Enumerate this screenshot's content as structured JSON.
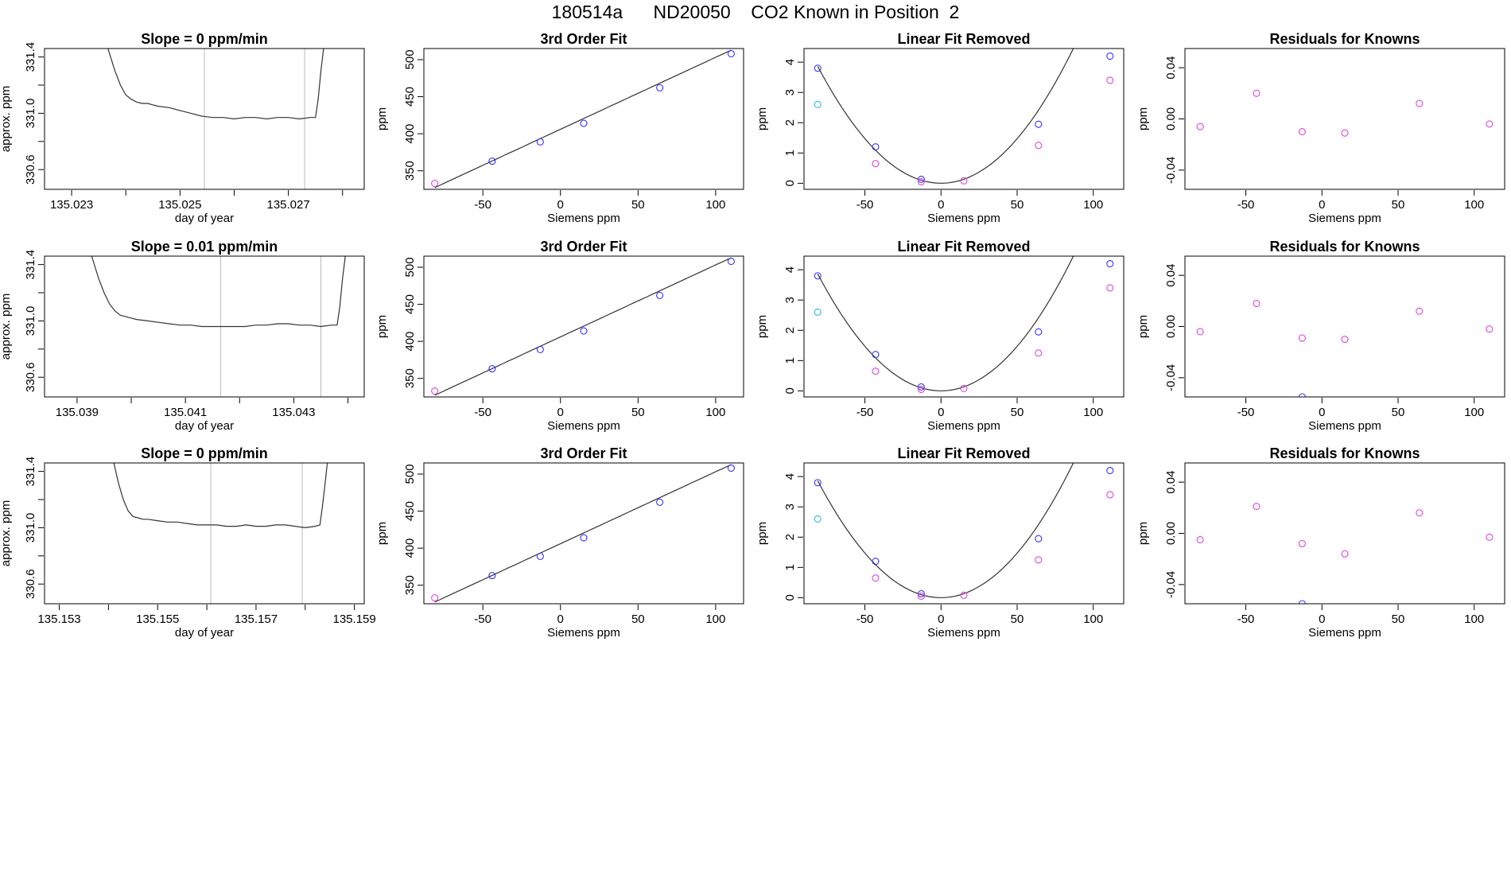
{
  "page": {
    "title": "180514a      ND20050    CO2 Known in Position  2"
  },
  "colors": {
    "line": "#333333",
    "blue": "#3333ff",
    "magenta": "#dd44dd",
    "cyan": "#22bbdd",
    "gray": "#bbbbbb",
    "axis": "#000000"
  },
  "chart_data": [
    {
      "type": "line",
      "row": 0,
      "col": 0,
      "title": "Slope =  0  ppm/min",
      "xlabel": "day of year",
      "ylabel": "approx. ppm",
      "xlim": [
        135.0225,
        135.0284
      ],
      "ylim": [
        330.46,
        331.46
      ],
      "xticks": [
        135.023,
        135.024,
        135.025,
        135.026,
        135.027,
        135.028
      ],
      "xtick_labels": [
        "135.023",
        "",
        "135.025",
        "",
        "135.027",
        ""
      ],
      "yticks": [
        330.6,
        330.8,
        331.0,
        331.2,
        331.4
      ],
      "ytick_labels": [
        "330.6",
        "",
        "331.0",
        "",
        "331.4"
      ],
      "vlines": [
        135.02545,
        135.0273
      ],
      "trace": {
        "x": [
          135.02367,
          135.0238,
          135.0239,
          135.024,
          135.0241,
          135.0242,
          135.0243,
          135.0244,
          135.0245,
          135.0246,
          135.0248,
          135.025,
          135.0252,
          135.0254,
          135.0256,
          135.0258,
          135.026,
          135.0262,
          135.0264,
          135.0266,
          135.0268,
          135.027,
          135.0272,
          135.0274,
          135.0275,
          135.02755,
          135.0276,
          135.02765
        ],
        "y": [
          331.46,
          331.3,
          331.2,
          331.13,
          331.1,
          331.08,
          331.07,
          331.07,
          331.06,
          331.05,
          331.04,
          331.02,
          331.0,
          330.98,
          330.97,
          330.97,
          330.96,
          330.97,
          330.97,
          330.96,
          330.97,
          330.97,
          330.96,
          330.97,
          330.97,
          331.1,
          331.3,
          331.46
        ]
      }
    },
    {
      "type": "scatter",
      "row": 0,
      "col": 1,
      "title": "3rd Order Fit",
      "xlabel": "Siemens ppm",
      "ylabel": "ppm",
      "xlim": [
        -88,
        118
      ],
      "ylim": [
        325,
        515
      ],
      "xticks": [
        -50,
        0,
        50,
        100
      ],
      "xtick_labels": [
        "-50",
        "0",
        "50",
        "100"
      ],
      "yticks": [
        350,
        400,
        450,
        500
      ],
      "ytick_labels": [
        "350",
        "400",
        "450",
        "500"
      ],
      "fit": {
        "kind": "linear",
        "slope": 0.9715,
        "intercept": 406,
        "x_range": [
          -81,
          110
        ]
      },
      "points": [
        {
          "x": -81,
          "y": 333,
          "color": "magenta"
        },
        {
          "x": -44,
          "y": 363,
          "color": "blue"
        },
        {
          "x": -13,
          "y": 389,
          "color": "blue"
        },
        {
          "x": 15,
          "y": 414,
          "color": "blue"
        },
        {
          "x": 64,
          "y": 462,
          "color": "blue"
        },
        {
          "x": 110,
          "y": 508,
          "color": "blue"
        }
      ]
    },
    {
      "type": "scatter",
      "row": 0,
      "col": 2,
      "title": "Linear Fit Removed",
      "xlabel": "Siemens ppm",
      "ylabel": "ppm",
      "xlim": [
        -90,
        120
      ],
      "ylim": [
        -0.2,
        4.45
      ],
      "xticks": [
        -50,
        0,
        50,
        100
      ],
      "xtick_labels": [
        "-50",
        "0",
        "50",
        "100"
      ],
      "yticks": [
        0,
        1,
        2,
        3,
        4
      ],
      "ytick_labels": [
        "0",
        "1",
        "2",
        "3",
        "4"
      ],
      "fit": {
        "kind": "quadratic",
        "a": 0.000589,
        "b": 0.0,
        "c": 0.0,
        "x_range": [
          -81,
          110
        ]
      },
      "points": [
        {
          "x": -81,
          "y": 3.8,
          "color": "blue"
        },
        {
          "x": -81,
          "y": 2.6,
          "color": "cyan"
        },
        {
          "x": -43,
          "y": 1.2,
          "color": "blue"
        },
        {
          "x": -43,
          "y": 0.65,
          "color": "magenta"
        },
        {
          "x": -13,
          "y": 0.13,
          "color": "blue"
        },
        {
          "x": -13,
          "y": 0.05,
          "color": "magenta"
        },
        {
          "x": 15,
          "y": 0.08,
          "color": "magenta"
        },
        {
          "x": 64,
          "y": 1.95,
          "color": "blue"
        },
        {
          "x": 64,
          "y": 1.25,
          "color": "magenta"
        },
        {
          "x": 111,
          "y": 4.2,
          "color": "blue"
        },
        {
          "x": 111,
          "y": 3.4,
          "color": "magenta"
        }
      ]
    },
    {
      "type": "scatter",
      "row": 0,
      "col": 3,
      "title": "Residuals for Knowns",
      "xlabel": "Siemens ppm",
      "ylabel": "ppm",
      "xlim": [
        -90,
        120
      ],
      "ylim": [
        -0.055,
        0.055
      ],
      "xticks": [
        -50,
        0,
        50,
        100
      ],
      "xtick_labels": [
        "-50",
        "0",
        "50",
        "100"
      ],
      "yticks": [
        -0.04,
        0.0,
        0.04
      ],
      "ytick_labels": [
        "-0.04",
        "0.00",
        "0.04"
      ],
      "points": [
        {
          "x": -80,
          "y": -0.006,
          "color": "magenta"
        },
        {
          "x": -43,
          "y": 0.02,
          "color": "magenta"
        },
        {
          "x": -13,
          "y": -0.01,
          "color": "magenta"
        },
        {
          "x": 15,
          "y": -0.011,
          "color": "magenta"
        },
        {
          "x": 64,
          "y": 0.012,
          "color": "magenta"
        },
        {
          "x": 110,
          "y": -0.004,
          "color": "magenta"
        }
      ]
    },
    {
      "type": "line",
      "row": 1,
      "col": 0,
      "title": "Slope =  0.01  ppm/min",
      "xlabel": "day of year",
      "ylabel": "approx. ppm",
      "xlim": [
        135.0384,
        135.0443
      ],
      "ylim": [
        330.46,
        331.46
      ],
      "xticks": [
        135.039,
        135.04,
        135.041,
        135.042,
        135.043,
        135.044
      ],
      "xtick_labels": [
        "135.039",
        "",
        "135.041",
        "",
        "135.043",
        ""
      ],
      "yticks": [
        330.6,
        330.8,
        331.0,
        331.2,
        331.4
      ],
      "ytick_labels": [
        "330.6",
        "",
        "331.0",
        "",
        "331.4"
      ],
      "vlines": [
        135.04165,
        135.0435
      ],
      "trace": {
        "x": [
          135.03927,
          135.0394,
          135.0395,
          135.0396,
          135.0397,
          135.0398,
          135.0399,
          135.04,
          135.0401,
          135.0403,
          135.0405,
          135.0407,
          135.0409,
          135.0411,
          135.0413,
          135.0415,
          135.0417,
          135.0419,
          135.0421,
          135.0423,
          135.0425,
          135.0427,
          135.0429,
          135.0431,
          135.0433,
          135.0435,
          135.0437,
          135.0438,
          135.04385,
          135.0439,
          135.04395
        ],
        "y": [
          331.46,
          331.3,
          331.2,
          331.12,
          331.07,
          331.04,
          331.03,
          331.02,
          331.01,
          331.0,
          330.99,
          330.98,
          330.97,
          330.97,
          330.96,
          330.96,
          330.96,
          330.96,
          330.96,
          330.97,
          330.97,
          330.98,
          330.98,
          330.97,
          330.97,
          330.96,
          330.97,
          330.97,
          331.1,
          331.3,
          331.46
        ]
      }
    },
    {
      "type": "scatter",
      "row": 1,
      "col": 1,
      "title": "3rd Order Fit",
      "xlabel": "Siemens ppm",
      "ylabel": "ppm",
      "xlim": [
        -88,
        118
      ],
      "ylim": [
        325,
        515
      ],
      "xticks": [
        -50,
        0,
        50,
        100
      ],
      "xtick_labels": [
        "-50",
        "0",
        "50",
        "100"
      ],
      "yticks": [
        350,
        400,
        450,
        500
      ],
      "ytick_labels": [
        "350",
        "400",
        "450",
        "500"
      ],
      "fit": {
        "kind": "linear",
        "slope": 0.9715,
        "intercept": 406,
        "x_range": [
          -81,
          110
        ]
      },
      "points": [
        {
          "x": -81,
          "y": 333,
          "color": "magenta"
        },
        {
          "x": -44,
          "y": 363,
          "color": "blue"
        },
        {
          "x": -13,
          "y": 389,
          "color": "blue"
        },
        {
          "x": 15,
          "y": 414,
          "color": "blue"
        },
        {
          "x": 64,
          "y": 462,
          "color": "blue"
        },
        {
          "x": 110,
          "y": 508,
          "color": "blue"
        }
      ]
    },
    {
      "type": "scatter",
      "row": 1,
      "col": 2,
      "title": "Linear Fit Removed",
      "xlabel": "Siemens ppm",
      "ylabel": "ppm",
      "xlim": [
        -90,
        120
      ],
      "ylim": [
        -0.2,
        4.45
      ],
      "xticks": [
        -50,
        0,
        50,
        100
      ],
      "xtick_labels": [
        "-50",
        "0",
        "50",
        "100"
      ],
      "yticks": [
        0,
        1,
        2,
        3,
        4
      ],
      "ytick_labels": [
        "0",
        "1",
        "2",
        "3",
        "4"
      ],
      "fit": {
        "kind": "quadratic",
        "a": 0.000589,
        "b": 0.0,
        "c": 0.0,
        "x_range": [
          -81,
          110
        ]
      },
      "points": [
        {
          "x": -81,
          "y": 3.8,
          "color": "blue"
        },
        {
          "x": -81,
          "y": 2.6,
          "color": "cyan"
        },
        {
          "x": -43,
          "y": 1.2,
          "color": "blue"
        },
        {
          "x": -43,
          "y": 0.65,
          "color": "magenta"
        },
        {
          "x": -13,
          "y": 0.13,
          "color": "blue"
        },
        {
          "x": -13,
          "y": 0.05,
          "color": "magenta"
        },
        {
          "x": 15,
          "y": 0.08,
          "color": "magenta"
        },
        {
          "x": 64,
          "y": 1.95,
          "color": "blue"
        },
        {
          "x": 64,
          "y": 1.25,
          "color": "magenta"
        },
        {
          "x": 111,
          "y": 4.2,
          "color": "blue"
        },
        {
          "x": 111,
          "y": 3.4,
          "color": "magenta"
        }
      ]
    },
    {
      "type": "scatter",
      "row": 1,
      "col": 3,
      "title": "Residuals for Knowns",
      "xlabel": "Siemens ppm",
      "ylabel": "ppm",
      "xlim": [
        -90,
        120
      ],
      "ylim": [
        -0.055,
        0.055
      ],
      "xticks": [
        -50,
        0,
        50,
        100
      ],
      "xtick_labels": [
        "-50",
        "0",
        "50",
        "100"
      ],
      "yticks": [
        -0.04,
        0.0,
        0.04
      ],
      "ytick_labels": [
        "-0.04",
        "0.00",
        "0.04"
      ],
      "points": [
        {
          "x": -80,
          "y": -0.004,
          "color": "magenta"
        },
        {
          "x": -43,
          "y": 0.018,
          "color": "magenta"
        },
        {
          "x": -13,
          "y": -0.009,
          "color": "magenta"
        },
        {
          "x": 15,
          "y": -0.01,
          "color": "magenta"
        },
        {
          "x": 64,
          "y": 0.012,
          "color": "magenta"
        },
        {
          "x": 110,
          "y": -0.002,
          "color": "magenta"
        },
        {
          "x": -13,
          "y": -0.055,
          "color": "blue"
        }
      ]
    },
    {
      "type": "line",
      "row": 2,
      "col": 0,
      "title": "Slope =  0  ppm/min",
      "xlabel": "day of year",
      "ylabel": "approx. ppm",
      "xlim": [
        135.1527,
        135.1592
      ],
      "ylim": [
        330.46,
        331.46
      ],
      "xticks": [
        135.153,
        135.154,
        135.155,
        135.156,
        135.157,
        135.158,
        135.159
      ],
      "xtick_labels": [
        "135.153",
        "",
        "135.155",
        "",
        "135.157",
        "",
        "135.159"
      ],
      "yticks": [
        330.6,
        330.8,
        331.0,
        331.2,
        331.4
      ],
      "ytick_labels": [
        "330.6",
        "",
        "331.0",
        "",
        "331.4"
      ],
      "vlines": [
        135.15608,
        135.15794
      ],
      "trace": {
        "x": [
          135.15411,
          135.1542,
          135.1543,
          135.1544,
          135.1545,
          135.1546,
          135.1547,
          135.1548,
          135.155,
          135.1552,
          135.1554,
          135.1556,
          135.1558,
          135.156,
          135.1562,
          135.1564,
          135.1566,
          135.1568,
          135.157,
          135.1572,
          135.1574,
          135.1576,
          135.1578,
          135.158,
          135.1582,
          135.1583,
          135.15835,
          135.1584,
          135.15845
        ],
        "y": [
          331.46,
          331.32,
          331.2,
          331.12,
          331.08,
          331.07,
          331.06,
          331.06,
          331.05,
          331.04,
          331.04,
          331.03,
          331.02,
          331.02,
          331.02,
          331.01,
          331.01,
          331.02,
          331.01,
          331.01,
          331.02,
          331.02,
          331.01,
          331.0,
          331.01,
          331.02,
          331.15,
          331.3,
          331.46
        ]
      }
    },
    {
      "type": "scatter",
      "row": 2,
      "col": 1,
      "title": "3rd Order Fit",
      "xlabel": "Siemens ppm",
      "ylabel": "ppm",
      "xlim": [
        -88,
        118
      ],
      "ylim": [
        325,
        515
      ],
      "xticks": [
        -50,
        0,
        50,
        100
      ],
      "xtick_labels": [
        "-50",
        "0",
        "50",
        "100"
      ],
      "yticks": [
        350,
        400,
        450,
        500
      ],
      "ytick_labels": [
        "350",
        "400",
        "450",
        "500"
      ],
      "fit": {
        "kind": "linear",
        "slope": 0.9715,
        "intercept": 406,
        "x_range": [
          -81,
          110
        ]
      },
      "points": [
        {
          "x": -81,
          "y": 333,
          "color": "magenta"
        },
        {
          "x": -44,
          "y": 363,
          "color": "blue"
        },
        {
          "x": -13,
          "y": 389,
          "color": "blue"
        },
        {
          "x": 15,
          "y": 414,
          "color": "blue"
        },
        {
          "x": 64,
          "y": 462,
          "color": "blue"
        },
        {
          "x": 110,
          "y": 508,
          "color": "blue"
        }
      ]
    },
    {
      "type": "scatter",
      "row": 2,
      "col": 2,
      "title": "Linear Fit Removed",
      "xlabel": "Siemens ppm",
      "ylabel": "ppm",
      "xlim": [
        -90,
        120
      ],
      "ylim": [
        -0.2,
        4.45
      ],
      "xticks": [
        -50,
        0,
        50,
        100
      ],
      "xtick_labels": [
        "-50",
        "0",
        "50",
        "100"
      ],
      "yticks": [
        0,
        1,
        2,
        3,
        4
      ],
      "ytick_labels": [
        "0",
        "1",
        "2",
        "3",
        "4"
      ],
      "fit": {
        "kind": "quadratic",
        "a": 0.000589,
        "b": 0.0,
        "c": 0.0,
        "x_range": [
          -81,
          110
        ]
      },
      "points": [
        {
          "x": -81,
          "y": 3.8,
          "color": "blue"
        },
        {
          "x": -81,
          "y": 2.6,
          "color": "cyan"
        },
        {
          "x": -43,
          "y": 1.2,
          "color": "blue"
        },
        {
          "x": -43,
          "y": 0.65,
          "color": "magenta"
        },
        {
          "x": -13,
          "y": 0.13,
          "color": "blue"
        },
        {
          "x": -13,
          "y": 0.05,
          "color": "magenta"
        },
        {
          "x": 15,
          "y": 0.08,
          "color": "magenta"
        },
        {
          "x": 64,
          "y": 1.95,
          "color": "blue"
        },
        {
          "x": 64,
          "y": 1.25,
          "color": "magenta"
        },
        {
          "x": 111,
          "y": 4.2,
          "color": "blue"
        },
        {
          "x": 111,
          "y": 3.4,
          "color": "magenta"
        }
      ]
    },
    {
      "type": "scatter",
      "row": 2,
      "col": 3,
      "title": "Residuals for Knowns",
      "xlabel": "Siemens ppm",
      "ylabel": "ppm",
      "xlim": [
        -90,
        120
      ],
      "ylim": [
        -0.055,
        0.055
      ],
      "xticks": [
        -50,
        0,
        50,
        100
      ],
      "xtick_labels": [
        "-50",
        "0",
        "50",
        "100"
      ],
      "yticks": [
        -0.04,
        0.0,
        0.04
      ],
      "ytick_labels": [
        "-0.04",
        "0.00",
        "0.04"
      ],
      "points": [
        {
          "x": -80,
          "y": -0.005,
          "color": "magenta"
        },
        {
          "x": -43,
          "y": 0.021,
          "color": "magenta"
        },
        {
          "x": -13,
          "y": -0.008,
          "color": "magenta"
        },
        {
          "x": 15,
          "y": -0.016,
          "color": "magenta"
        },
        {
          "x": 64,
          "y": 0.016,
          "color": "magenta"
        },
        {
          "x": 110,
          "y": -0.003,
          "color": "magenta"
        },
        {
          "x": -13,
          "y": -0.055,
          "color": "blue"
        }
      ]
    }
  ]
}
